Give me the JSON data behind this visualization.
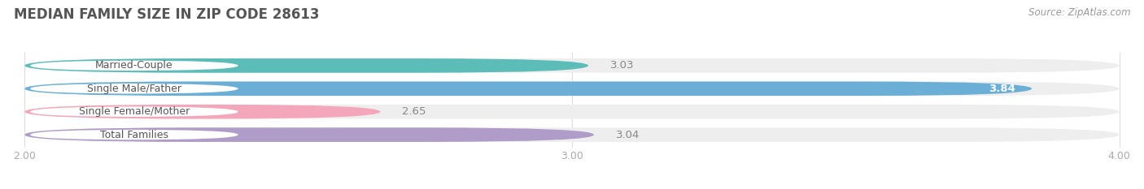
{
  "title": "MEDIAN FAMILY SIZE IN ZIP CODE 28613",
  "source": "Source: ZipAtlas.com",
  "categories": [
    "Married-Couple",
    "Single Male/Father",
    "Single Female/Mother",
    "Total Families"
  ],
  "values": [
    3.03,
    3.84,
    2.65,
    3.04
  ],
  "bar_colors": [
    "#5bbcb8",
    "#6baed6",
    "#f4a7bb",
    "#b09cc8"
  ],
  "bar_bg_colors": [
    "#eeeeee",
    "#eeeeee",
    "#eeeeee",
    "#eeeeee"
  ],
  "xlim": [
    2.0,
    4.0
  ],
  "xticks": [
    2.0,
    3.0,
    4.0
  ],
  "label_color_inside": "#ffffff",
  "label_color_outside": "#888888",
  "title_color": "#555555",
  "source_color": "#999999",
  "tick_color": "#aaaaaa",
  "background_color": "#ffffff",
  "bar_height": 0.62,
  "label_fontsize": 9.5,
  "title_fontsize": 12,
  "source_fontsize": 8.5,
  "tick_fontsize": 9,
  "category_fontsize": 9
}
